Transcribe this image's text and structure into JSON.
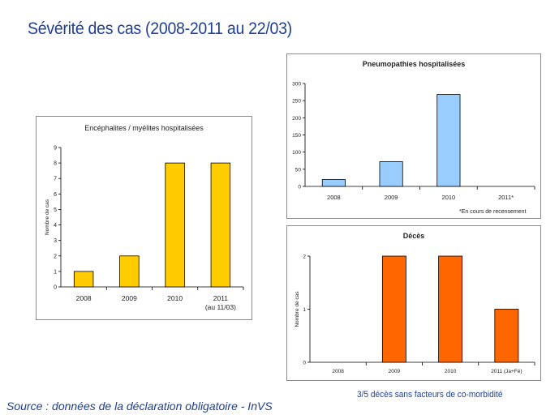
{
  "page": {
    "title": "Sévérité des cas (2008-2011 au 22/03)",
    "source": "Source : données de la déclaration obligatoire - InVS",
    "bottom_note": "3/5 décès sans facteurs de co-morbidité"
  },
  "colors": {
    "title_blue": "#1f3f95",
    "yellow": "#ffcc00",
    "light_blue": "#99ccff",
    "orange": "#ff6600"
  },
  "chart_data": [
    {
      "id": "encephalites",
      "type": "bar",
      "title": "Encéphalites / myélites hospitalisées",
      "ylabel": "Nombre de cas",
      "xlabel": "",
      "categories": [
        "2008",
        "2009",
        "2010",
        "2011"
      ],
      "category_sublabels": [
        "",
        "",
        "",
        "(au 11/03)"
      ],
      "values": [
        1,
        2,
        8,
        8
      ],
      "ylim": [
        0,
        9
      ],
      "yticks": [
        "0",
        "1",
        "2",
        "3",
        "4",
        "5",
        "6",
        "7",
        "8",
        "9"
      ],
      "color": "#ffcc00",
      "grid": false,
      "note": ""
    },
    {
      "id": "pneumopathies",
      "type": "bar",
      "title": "Pneumopathies hospitalisées",
      "ylabel": "",
      "xlabel": "",
      "categories": [
        "2008",
        "2009",
        "2010",
        "2011*"
      ],
      "category_sublabels": [
        "",
        "",
        "",
        ""
      ],
      "values": [
        20,
        72,
        268,
        0
      ],
      "ylim": [
        0,
        300
      ],
      "yticks": [
        "0",
        "50",
        "100",
        "150",
        "200",
        "250",
        "300"
      ],
      "color": "#99ccff",
      "grid": false,
      "note": "*En cours de recensement"
    },
    {
      "id": "deces",
      "type": "bar",
      "title": "Décès",
      "ylabel": "Nombre de cas",
      "xlabel": "",
      "categories": [
        "2008",
        "2009",
        "2010",
        "2011 (Ja+Fé)"
      ],
      "category_sublabels": [
        "",
        "",
        "",
        ""
      ],
      "values": [
        0,
        2,
        2,
        1
      ],
      "ylim": [
        0,
        2
      ],
      "yticks": [
        "0",
        "1",
        "2"
      ],
      "color": "#ff6600",
      "grid": false,
      "note": ""
    }
  ]
}
